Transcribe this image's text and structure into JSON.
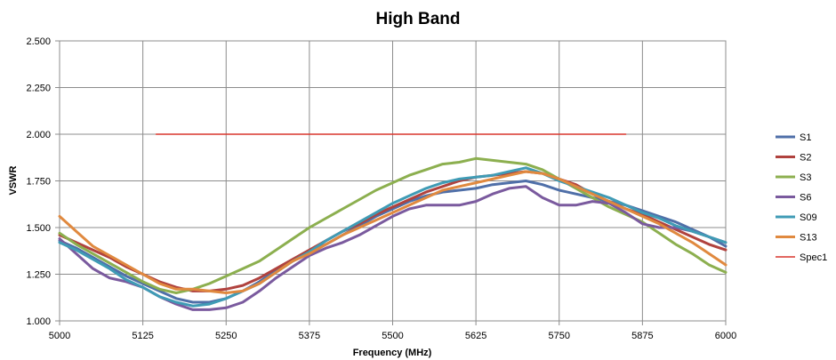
{
  "chart_data": {
    "type": "line",
    "title": "High Band",
    "xlabel": "Frequency (MHz)",
    "ylabel": "VSWR",
    "xlim": [
      5000,
      6000
    ],
    "ylim": [
      1.0,
      2.5
    ],
    "x_ticks": [
      5000,
      5125,
      5250,
      5375,
      5500,
      5625,
      5750,
      5875,
      6000
    ],
    "y_ticks": [
      1.0,
      1.25,
      1.5,
      1.75,
      2.0,
      2.25,
      2.5
    ],
    "x_tick_labels": [
      "5000",
      "5125",
      "5250",
      "5375",
      "5500",
      "5625",
      "5750",
      "5875",
      "6000"
    ],
    "y_tick_labels": [
      "1.000",
      "1.250",
      "1.500",
      "1.750",
      "2.000",
      "2.250",
      "2.500"
    ],
    "grid": true,
    "legend_position": "right",
    "series": [
      {
        "name": "S1",
        "color": "#4f6fa8",
        "x": [
          5000,
          5025,
          5050,
          5075,
          5100,
          5125,
          5150,
          5175,
          5200,
          5225,
          5250,
          5275,
          5300,
          5325,
          5350,
          5375,
          5400,
          5425,
          5450,
          5475,
          5500,
          5525,
          5550,
          5575,
          5600,
          5625,
          5650,
          5675,
          5700,
          5725,
          5750,
          5775,
          5800,
          5825,
          5850,
          5875,
          5900,
          5925,
          5950,
          5975,
          6000
        ],
        "y": [
          1.43,
          1.39,
          1.34,
          1.29,
          1.24,
          1.2,
          1.16,
          1.12,
          1.1,
          1.1,
          1.12,
          1.16,
          1.21,
          1.27,
          1.32,
          1.37,
          1.41,
          1.46,
          1.51,
          1.56,
          1.6,
          1.64,
          1.67,
          1.69,
          1.7,
          1.71,
          1.73,
          1.74,
          1.75,
          1.73,
          1.7,
          1.68,
          1.66,
          1.64,
          1.62,
          1.59,
          1.56,
          1.53,
          1.49,
          1.45,
          1.4
        ]
      },
      {
        "name": "S2",
        "color": "#b0423e",
        "x": [
          5000,
          5025,
          5050,
          5075,
          5100,
          5125,
          5150,
          5175,
          5200,
          5225,
          5250,
          5275,
          5300,
          5325,
          5350,
          5375,
          5400,
          5425,
          5450,
          5475,
          5500,
          5525,
          5550,
          5575,
          5600,
          5625,
          5650,
          5675,
          5700,
          5725,
          5750,
          5775,
          5800,
          5825,
          5850,
          5875,
          5900,
          5925,
          5950,
          5975,
          6000
        ],
        "y": [
          1.46,
          1.42,
          1.38,
          1.34,
          1.29,
          1.25,
          1.21,
          1.18,
          1.16,
          1.16,
          1.17,
          1.19,
          1.23,
          1.28,
          1.33,
          1.38,
          1.43,
          1.48,
          1.52,
          1.57,
          1.61,
          1.65,
          1.69,
          1.72,
          1.75,
          1.77,
          1.78,
          1.79,
          1.8,
          1.79,
          1.76,
          1.73,
          1.68,
          1.64,
          1.6,
          1.57,
          1.53,
          1.49,
          1.45,
          1.41,
          1.38
        ]
      },
      {
        "name": "S3",
        "color": "#8caf4f",
        "x": [
          5000,
          5025,
          5050,
          5075,
          5100,
          5125,
          5150,
          5175,
          5200,
          5225,
          5250,
          5275,
          5300,
          5325,
          5350,
          5375,
          5400,
          5425,
          5450,
          5475,
          5500,
          5525,
          5550,
          5575,
          5600,
          5625,
          5650,
          5675,
          5700,
          5725,
          5750,
          5775,
          5800,
          5825,
          5850,
          5875,
          5900,
          5925,
          5950,
          5975,
          6000
        ],
        "y": [
          1.47,
          1.41,
          1.36,
          1.31,
          1.26,
          1.21,
          1.17,
          1.15,
          1.17,
          1.2,
          1.24,
          1.28,
          1.32,
          1.38,
          1.44,
          1.5,
          1.55,
          1.6,
          1.65,
          1.7,
          1.74,
          1.78,
          1.81,
          1.84,
          1.85,
          1.87,
          1.86,
          1.85,
          1.84,
          1.81,
          1.76,
          1.71,
          1.66,
          1.61,
          1.57,
          1.53,
          1.47,
          1.41,
          1.36,
          1.3,
          1.26
        ]
      },
      {
        "name": "S6",
        "color": "#7a5a9e",
        "x": [
          5000,
          5025,
          5050,
          5075,
          5100,
          5125,
          5150,
          5175,
          5200,
          5225,
          5250,
          5275,
          5300,
          5325,
          5350,
          5375,
          5400,
          5425,
          5450,
          5475,
          5500,
          5525,
          5550,
          5575,
          5600,
          5625,
          5650,
          5675,
          5700,
          5725,
          5750,
          5775,
          5800,
          5825,
          5850,
          5875,
          5900,
          5925,
          5950,
          5975,
          6000
        ],
        "y": [
          1.44,
          1.36,
          1.28,
          1.23,
          1.21,
          1.18,
          1.13,
          1.09,
          1.06,
          1.06,
          1.07,
          1.1,
          1.16,
          1.23,
          1.29,
          1.35,
          1.39,
          1.42,
          1.46,
          1.51,
          1.56,
          1.6,
          1.62,
          1.62,
          1.62,
          1.64,
          1.68,
          1.71,
          1.72,
          1.66,
          1.62,
          1.62,
          1.64,
          1.63,
          1.58,
          1.52,
          1.5,
          1.5,
          1.48,
          1.45,
          1.42
        ]
      },
      {
        "name": "S09",
        "color": "#3f9bb5",
        "x": [
          5000,
          5025,
          5050,
          5075,
          5100,
          5125,
          5150,
          5175,
          5200,
          5225,
          5250,
          5275,
          5300,
          5325,
          5350,
          5375,
          5400,
          5425,
          5450,
          5475,
          5500,
          5525,
          5550,
          5575,
          5600,
          5625,
          5650,
          5675,
          5700,
          5725,
          5750,
          5775,
          5800,
          5825,
          5850,
          5875,
          5900,
          5925,
          5950,
          5975,
          6000
        ],
        "y": [
          1.42,
          1.38,
          1.33,
          1.28,
          1.22,
          1.18,
          1.13,
          1.1,
          1.08,
          1.09,
          1.12,
          1.16,
          1.2,
          1.26,
          1.32,
          1.37,
          1.43,
          1.48,
          1.53,
          1.58,
          1.63,
          1.67,
          1.71,
          1.74,
          1.76,
          1.77,
          1.78,
          1.8,
          1.82,
          1.79,
          1.75,
          1.72,
          1.69,
          1.66,
          1.62,
          1.58,
          1.55,
          1.51,
          1.48,
          1.45,
          1.42
        ]
      },
      {
        "name": "S13",
        "color": "#e0893f",
        "x": [
          5000,
          5025,
          5050,
          5075,
          5100,
          5125,
          5150,
          5175,
          5200,
          5225,
          5250,
          5275,
          5300,
          5325,
          5350,
          5375,
          5400,
          5425,
          5450,
          5475,
          5500,
          5525,
          5550,
          5575,
          5600,
          5625,
          5650,
          5675,
          5700,
          5725,
          5750,
          5775,
          5800,
          5825,
          5850,
          5875,
          5900,
          5925,
          5950,
          5975,
          6000
        ],
        "y": [
          1.56,
          1.48,
          1.4,
          1.35,
          1.3,
          1.25,
          1.2,
          1.17,
          1.17,
          1.16,
          1.15,
          1.16,
          1.2,
          1.26,
          1.32,
          1.36,
          1.41,
          1.46,
          1.5,
          1.54,
          1.58,
          1.62,
          1.66,
          1.7,
          1.72,
          1.74,
          1.76,
          1.78,
          1.8,
          1.79,
          1.76,
          1.72,
          1.68,
          1.64,
          1.6,
          1.56,
          1.52,
          1.47,
          1.42,
          1.36,
          1.3
        ]
      },
      {
        "name": "Spec1",
        "color": "#d9352b",
        "x": [
          5145,
          5850
        ],
        "y": [
          2.0,
          2.0
        ]
      }
    ]
  }
}
